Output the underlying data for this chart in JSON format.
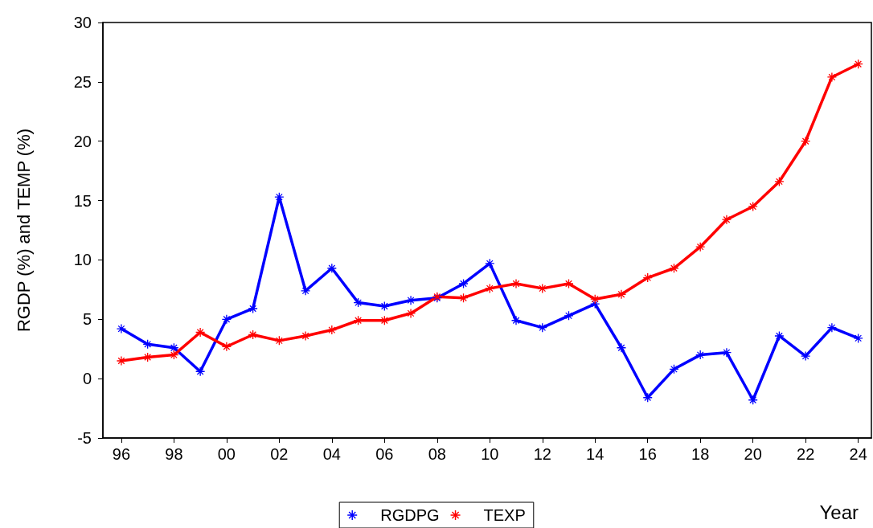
{
  "chart_data": {
    "type": "line",
    "xlabel": "Year",
    "ylabel": "RGDP (%) and TEMP (%)",
    "x": [
      1996,
      1997,
      1998,
      1999,
      2000,
      2001,
      2002,
      2003,
      2004,
      2005,
      2006,
      2007,
      2008,
      2009,
      2010,
      2011,
      2012,
      2013,
      2014,
      2015,
      2016,
      2017,
      2018,
      2019,
      2020,
      2021,
      2022,
      2023,
      2024
    ],
    "series": [
      {
        "name": "RGDPG",
        "color": "#0000ff",
        "values": [
          4.2,
          2.9,
          2.6,
          0.6,
          5.0,
          5.9,
          15.3,
          7.4,
          9.3,
          6.4,
          6.1,
          6.6,
          6.8,
          8.0,
          9.7,
          4.9,
          4.3,
          5.3,
          6.3,
          2.6,
          -1.6,
          0.8,
          2.0,
          2.2,
          -1.8,
          3.6,
          1.9,
          4.3,
          3.4
        ]
      },
      {
        "name": "TEXP",
        "color": "#ff0000",
        "values": [
          1.5,
          1.8,
          2.0,
          3.9,
          2.7,
          3.7,
          3.2,
          3.6,
          4.1,
          4.9,
          4.9,
          5.5,
          6.9,
          6.8,
          7.6,
          8.0,
          7.6,
          8.0,
          6.7,
          7.1,
          8.5,
          9.3,
          11.1,
          13.4,
          14.5,
          16.6,
          20.0,
          25.4,
          26.5
        ]
      }
    ],
    "xlim": [
      1995.3,
      2024.5
    ],
    "xticks": [
      {
        "value": 1996,
        "label": "96"
      },
      {
        "value": 1998,
        "label": "98"
      },
      {
        "value": 2000,
        "label": "00"
      },
      {
        "value": 2002,
        "label": "02"
      },
      {
        "value": 2004,
        "label": "04"
      },
      {
        "value": 2006,
        "label": "06"
      },
      {
        "value": 2008,
        "label": "08"
      },
      {
        "value": 2010,
        "label": "10"
      },
      {
        "value": 2012,
        "label": "12"
      },
      {
        "value": 2014,
        "label": "14"
      },
      {
        "value": 2016,
        "label": "16"
      },
      {
        "value": 2018,
        "label": "18"
      },
      {
        "value": 2020,
        "label": "20"
      },
      {
        "value": 2022,
        "label": "22"
      },
      {
        "value": 2024,
        "label": "24"
      }
    ],
    "ylim": [
      -5,
      30
    ],
    "yticks": [
      -5,
      0,
      5,
      10,
      15,
      20,
      25,
      30
    ],
    "grid": false,
    "legend": "bottom",
    "marker": "star",
    "line_style": "solid"
  }
}
